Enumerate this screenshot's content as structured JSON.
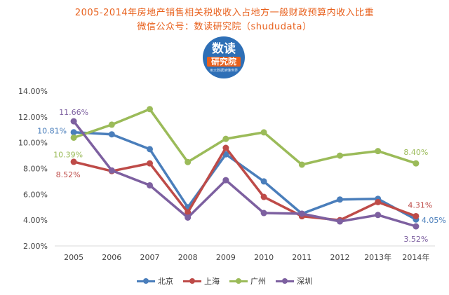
{
  "header": {
    "title": "2005-2014年房地产销售相关税收收入占地方一般财政预算内收入比重",
    "subtitle": "微信公众号：数读研究院（shududata）"
  },
  "logo": {
    "line1": "数读",
    "line2": "研究院",
    "line3": "用大数据读懂世界"
  },
  "chart_data": {
    "type": "line",
    "title": "2005-2014年房地产销售相关税收收入占地方一般财政预算内收入比重",
    "categories": [
      "2005",
      "2006",
      "2007",
      "2008",
      "2009",
      "2010",
      "2011",
      "2012",
      "2013年",
      "2014年"
    ],
    "y_ticks": [
      "2.00%",
      "4.00%",
      "6.00%",
      "8.00%",
      "10.00%",
      "12.00%",
      "14.00%"
    ],
    "ylim": [
      2,
      14
    ],
    "grid": false,
    "legend_position": "bottom",
    "series": [
      {
        "name": "北京",
        "color": "#4a7ebb",
        "values": [
          10.81,
          10.65,
          9.5,
          5.0,
          9.1,
          7.0,
          4.5,
          5.6,
          5.65,
          4.05
        ]
      },
      {
        "name": "上海",
        "color": "#be4b48",
        "values": [
          8.52,
          7.8,
          8.4,
          4.6,
          9.6,
          5.8,
          4.3,
          4.0,
          5.4,
          4.31
        ]
      },
      {
        "name": "广州",
        "color": "#9bbb59",
        "values": [
          10.39,
          11.4,
          12.6,
          8.5,
          10.3,
          10.8,
          8.3,
          9.0,
          9.35,
          8.4
        ]
      },
      {
        "name": "深圳",
        "color": "#7d60a0",
        "values": [
          11.66,
          7.85,
          6.7,
          4.2,
          7.1,
          4.55,
          4.5,
          3.9,
          4.4,
          3.52
        ]
      }
    ],
    "annotations": [
      {
        "text": "11.66%",
        "series": "深圳",
        "index": 0,
        "anchor": "above"
      },
      {
        "text": "10.81%",
        "series": "北京",
        "index": 0,
        "anchor": "left"
      },
      {
        "text": "10.39%",
        "series": "广州",
        "index": 0,
        "anchor": "below"
      },
      {
        "text": "8.52%",
        "series": "上海",
        "index": 0,
        "anchor": "below"
      },
      {
        "text": "8.40%",
        "series": "广州",
        "index": 9,
        "anchor": "above"
      },
      {
        "text": "4.31%",
        "series": "上海",
        "index": 9,
        "anchor": "above"
      },
      {
        "text": "4.05%",
        "series": "北京",
        "index": 9,
        "anchor": "right"
      },
      {
        "text": "3.52%",
        "series": "深圳",
        "index": 9,
        "anchor": "below"
      }
    ]
  }
}
